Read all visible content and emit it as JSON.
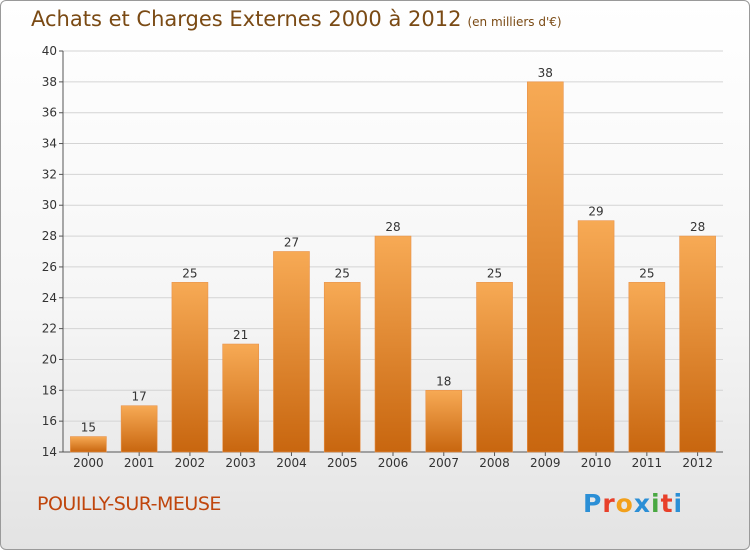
{
  "title": "Achats et Charges Externes 2000 à 2012",
  "unit": "(en milliers d'€)",
  "commune": "POUILLY-SUR-MEUSE",
  "brand": {
    "text": "Proxiti",
    "letters": [
      "P",
      "r",
      "o",
      "x",
      "i",
      "t",
      "i"
    ],
    "colors": [
      "#2b8fd6",
      "#e8402a",
      "#f2a01b",
      "#2b8fd6",
      "#49a842",
      "#e8402a",
      "#2b8fd6"
    ]
  },
  "colors": {
    "bar_top": "#f7aa55",
    "bar_bottom": "#c8660f",
    "title": "#7a4a14",
    "commune": "#c0450c",
    "grid": "#d4d4d4"
  },
  "chart_data": {
    "type": "bar",
    "title": "Achats et Charges Externes 2000 à 2012",
    "subtitle": "(en milliers d'€)",
    "xlabel": "",
    "ylabel": "",
    "categories": [
      "2000",
      "2001",
      "2002",
      "2003",
      "2004",
      "2005",
      "2006",
      "2007",
      "2008",
      "2009",
      "2010",
      "2011",
      "2012"
    ],
    "values": [
      15,
      17,
      25,
      21,
      27,
      25,
      28,
      18,
      25,
      38,
      29,
      25,
      28
    ],
    "ylim": [
      14,
      40
    ],
    "yticks": [
      14,
      16,
      18,
      20,
      22,
      24,
      26,
      28,
      30,
      32,
      34,
      36,
      38,
      40
    ],
    "grid": true,
    "legend": "none"
  }
}
